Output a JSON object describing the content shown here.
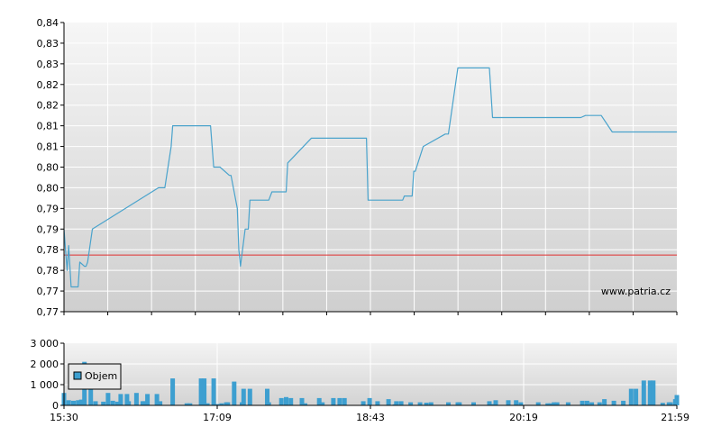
{
  "watermark": "www.patria.cz",
  "legend_label": "Objem",
  "colors": {
    "line": "#4aa3cc",
    "reference": "#e03030",
    "bars": "#3d9fd0",
    "grid": "#ffffff",
    "axis": "#000000"
  },
  "chart_data": [
    {
      "type": "line",
      "title": "",
      "xlabel": "",
      "ylabel": "",
      "ylim": [
        0.77,
        0.84
      ],
      "y_tick_labels": [
        "0,84",
        "0,83",
        "0,83",
        "0,82",
        "0,82",
        "0,81",
        "0,81",
        "0,80",
        "0,80",
        "0,79",
        "0,79",
        "0,78",
        "0,78",
        "0,77",
        "0,77"
      ],
      "x_range_minutes": [
        0,
        389
      ],
      "reference_line": 0.7837,
      "grid": true,
      "series": [
        {
          "x": [
            0,
            1,
            2,
            3,
            4.5,
            6,
            7,
            9,
            10,
            13,
            14,
            15,
            18,
            60,
            61,
            62,
            64,
            66,
            68,
            69,
            91,
            92,
            93,
            95,
            97,
            99,
            105,
            106,
            110,
            111,
            112,
            115,
            117,
            118,
            130,
            132,
            141,
            142,
            157,
            177,
            178,
            192,
            193,
            200,
            203,
            205,
            206,
            215,
            216,
            220,
            221,
            222,
            223,
            228,
            242,
            244,
            250,
            270,
            272,
            273,
            274,
            328,
            331,
            336,
            341,
            348,
            348.5,
            350,
            351,
            355,
            359,
            366,
            368,
            369,
            370,
            373,
            377,
            380,
            389
          ],
          "y": [
            0.79,
            0.785,
            0.78,
            0.786,
            0.776,
            0.776,
            0.776,
            0.776,
            0.782,
            0.781,
            0.781,
            0.782,
            0.79,
            0.8,
            0.8,
            0.8,
            0.8,
            0.805,
            0.81,
            0.815,
            0.815,
            0.815,
            0.815,
            0.805,
            0.805,
            0.805,
            0.803,
            0.803,
            0.795,
            0.785,
            0.781,
            0.79,
            0.79,
            0.797,
            0.797,
            0.799,
            0.799,
            0.806,
            0.812,
            0.812,
            0.812,
            0.812,
            0.797,
            0.797,
            0.797,
            0.797,
            0.797,
            0.797,
            0.798,
            0.798,
            0.798,
            0.804,
            0.804,
            0.81,
            0.813,
            0.813,
            0.829,
            0.829,
            0.817,
            0.817,
            0.817,
            0.817,
            0.8175,
            0.8175,
            0.8175,
            0.8135,
            0.8135,
            0.8135,
            0.8135,
            0.8135,
            0.8135,
            0.8135,
            0.8135,
            0.8135,
            0.8135,
            0.8135,
            0.8135,
            0.8135,
            0.8135
          ]
        }
      ]
    },
    {
      "type": "bar",
      "title": "",
      "xlabel": "",
      "ylabel": "",
      "ylim": [
        0,
        3000
      ],
      "y_tick_labels": [
        "3 000",
        "2 000",
        "1 000",
        "0"
      ],
      "x_tick_labels": [
        "15:30",
        "17:09",
        "18:43",
        "20:19",
        "21:59"
      ],
      "legend": "inside-top-left",
      "series": [
        {
          "name": "Objem",
          "x": [
            0,
            3,
            6,
            9,
            11,
            13,
            17,
            20,
            25,
            28,
            31,
            34,
            36,
            40,
            41,
            46,
            50,
            51,
            53,
            59,
            61,
            69,
            78,
            80,
            87,
            89,
            91,
            95,
            97,
            100,
            103,
            104,
            108,
            113,
            114,
            118,
            129,
            130,
            138,
            141,
            144,
            151,
            153,
            162,
            164,
            171,
            175,
            178,
            190,
            194,
            199,
            206,
            210,
            211,
            214,
            220,
            226,
            230,
            233,
            244,
            250,
            251,
            260,
            270,
            272,
            274,
            282,
            287,
            290,
            301,
            307,
            309,
            311,
            313,
            320,
            329,
            332,
            335,
            340,
            343,
            349,
            355,
            360,
            363,
            368,
            372,
            374,
            380,
            384,
            385,
            388,
            389
          ],
          "y": [
            600,
            250,
            220,
            250,
            280,
            2100,
            1500,
            200,
            180,
            600,
            220,
            180,
            550,
            550,
            200,
            600,
            200,
            200,
            550,
            550,
            200,
            1300,
            100,
            100,
            1300,
            1300,
            100,
            1300,
            60,
            100,
            150,
            150,
            1150,
            150,
            800,
            800,
            800,
            150,
            350,
            400,
            350,
            350,
            100,
            350,
            150,
            350,
            350,
            350,
            200,
            350,
            200,
            300,
            50,
            200,
            200,
            150,
            150,
            130,
            150,
            150,
            150,
            150,
            150,
            200,
            60,
            250,
            250,
            250,
            150,
            150,
            100,
            100,
            150,
            150,
            150,
            220,
            220,
            150,
            150,
            300,
            220,
            220,
            800,
            800,
            1200,
            1200,
            1200,
            120,
            150,
            150,
            300,
            500
          ]
        }
      ]
    }
  ]
}
